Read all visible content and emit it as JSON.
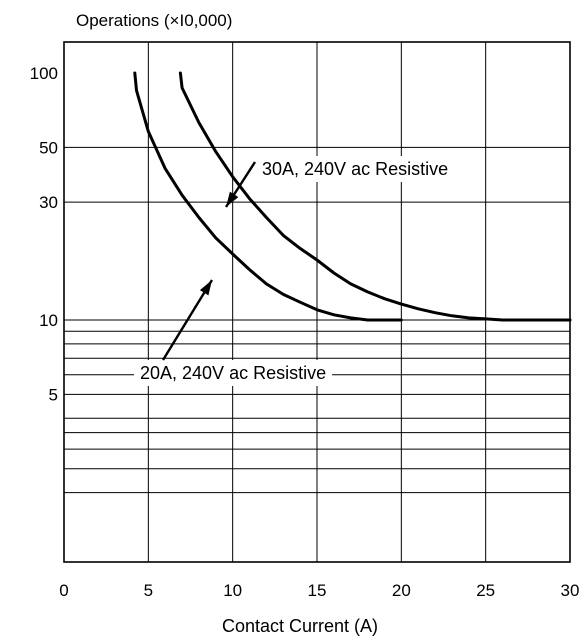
{
  "chart_data": {
    "type": "line",
    "ylabel": "Operations (×I0,000)",
    "xlabel": "Contact Current (A)",
    "xlim": [
      0,
      30
    ],
    "x_ticks": [
      {
        "value": 0,
        "label": "0"
      },
      {
        "value": 5,
        "label": "5"
      },
      {
        "value": 10,
        "label": "10"
      },
      {
        "value": 15,
        "label": "15"
      },
      {
        "value": 20,
        "label": "20"
      },
      {
        "value": 25,
        "label": "25"
      },
      {
        "value": 30,
        "label": "30"
      }
    ],
    "ylim": [
      1,
      100
    ],
    "y_scale": "log",
    "y_ticks": [
      {
        "value": 100,
        "label": "100"
      },
      {
        "value": 50,
        "label": "50"
      },
      {
        "value": 30,
        "label": "30"
      },
      {
        "value": 10,
        "label": "10"
      },
      {
        "value": 5,
        "label": "5"
      }
    ],
    "grid": {
      "vertical_x": [
        5,
        10,
        15,
        20,
        25
      ],
      "horizontal_y": [
        50,
        30,
        10,
        9,
        8,
        7,
        6,
        5,
        4,
        3.5,
        3,
        2.5,
        2
      ]
    },
    "series": [
      {
        "label": "30A, 240V ac Resistive",
        "x": [
          6.9,
          7,
          8,
          9,
          10,
          11,
          12,
          13,
          14,
          15,
          16,
          17,
          18,
          19,
          20,
          21,
          22,
          23,
          24,
          25,
          26,
          27,
          28,
          29,
          30
        ],
        "y": [
          100,
          87,
          63,
          48,
          38,
          31,
          26,
          22,
          19.5,
          17.5,
          15.5,
          14,
          13,
          12.2,
          11.6,
          11.1,
          10.7,
          10.4,
          10.2,
          10.1,
          10,
          10,
          10,
          10,
          10
        ]
      },
      {
        "label": "20A, 240V ac Resistive",
        "x": [
          4.2,
          4.3,
          5,
          6,
          7,
          8,
          9,
          10,
          11,
          12,
          13,
          14,
          15,
          16,
          17,
          18,
          19,
          20
        ],
        "y": [
          100,
          85,
          58,
          41,
          32,
          26,
          21.5,
          18.5,
          16,
          14,
          12.7,
          11.8,
          11,
          10.5,
          10.2,
          10,
          10,
          10
        ]
      }
    ]
  }
}
